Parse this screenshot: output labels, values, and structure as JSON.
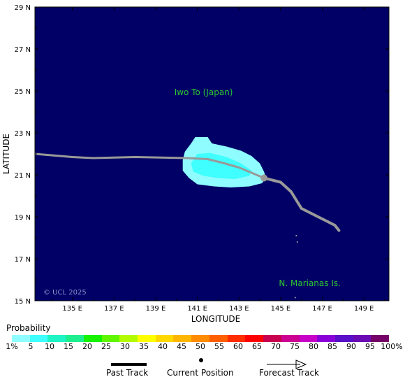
{
  "chart_data": {
    "type": "probability_map",
    "xlabel": "LONGITUDE",
    "ylabel": "LATITUDE",
    "xlim": [
      133.2,
      150.2
    ],
    "ylim": [
      15,
      29
    ],
    "x_ticks": [
      {
        "value": 135,
        "label": "135 E"
      },
      {
        "value": 137,
        "label": "137 E"
      },
      {
        "value": 139,
        "label": "139 E"
      },
      {
        "value": 141,
        "label": "141 E"
      },
      {
        "value": 143,
        "label": "143 E"
      },
      {
        "value": 145,
        "label": "145 E"
      },
      {
        "value": 147,
        "label": "147 E"
      },
      {
        "value": 149,
        "label": "149 E"
      }
    ],
    "y_ticks": [
      {
        "value": 15,
        "label": "15 N"
      },
      {
        "value": 17,
        "label": "17 N"
      },
      {
        "value": 19,
        "label": "19 N"
      },
      {
        "value": 21,
        "label": "21 N"
      },
      {
        "value": 23,
        "label": "23 N"
      },
      {
        "value": 25,
        "label": "25 N"
      },
      {
        "value": 27,
        "label": "27 N"
      },
      {
        "value": 29,
        "label": "29 N"
      }
    ],
    "place_labels": [
      {
        "text": "Iwo To (Japan)",
        "lon": 141.3,
        "lat": 24.8
      },
      {
        "text": "N. Marianas Is.",
        "lon": 146.4,
        "lat": 15.7
      }
    ],
    "copyright": "© UCL 2025",
    "past_track": [
      [
        133.2,
        22.0
      ],
      [
        135.0,
        21.85
      ],
      [
        136.0,
        21.8
      ],
      [
        138.0,
        21.85
      ],
      [
        140.5,
        21.8
      ],
      [
        141.5,
        21.75
      ],
      [
        142.3,
        21.55
      ],
      [
        143.0,
        21.35
      ],
      [
        143.6,
        21.1
      ],
      [
        144.2,
        20.85
      ]
    ],
    "forecast_track": [
      [
        144.2,
        20.85
      ],
      [
        145.0,
        20.65
      ],
      [
        145.5,
        20.2
      ],
      [
        146.0,
        19.4
      ],
      [
        146.8,
        19.0
      ],
      [
        147.6,
        18.6
      ],
      [
        147.8,
        18.35
      ]
    ],
    "current_position": [
      144.2,
      20.85
    ],
    "probability_regions": [
      {
        "threshold": "1%",
        "color": "#8ffdff",
        "polygon": [
          [
            140.9,
            22.8
          ],
          [
            141.5,
            22.8
          ],
          [
            141.7,
            22.5
          ],
          [
            142.4,
            22.35
          ],
          [
            143.1,
            22.15
          ],
          [
            143.6,
            21.9
          ],
          [
            144.0,
            21.55
          ],
          [
            144.2,
            21.15
          ],
          [
            144.3,
            20.85
          ],
          [
            144.1,
            20.6
          ],
          [
            143.5,
            20.45
          ],
          [
            142.6,
            20.4
          ],
          [
            141.8,
            20.45
          ],
          [
            141.0,
            20.55
          ],
          [
            140.6,
            20.85
          ],
          [
            140.3,
            21.2
          ],
          [
            140.3,
            21.7
          ],
          [
            140.4,
            22.1
          ],
          [
            140.7,
            22.5
          ]
        ]
      },
      {
        "threshold": "5%",
        "color": "#3fffff",
        "polygon": [
          [
            141.0,
            22.0
          ],
          [
            141.6,
            22.05
          ],
          [
            142.4,
            21.85
          ],
          [
            143.1,
            21.55
          ],
          [
            143.6,
            21.2
          ],
          [
            143.5,
            20.95
          ],
          [
            142.8,
            20.8
          ],
          [
            142.0,
            20.85
          ],
          [
            141.3,
            20.95
          ],
          [
            140.8,
            21.15
          ],
          [
            140.7,
            21.55
          ]
        ]
      }
    ],
    "colorbar": {
      "title": "Probability",
      "labels": [
        "1%",
        "5",
        "10",
        "15",
        "20",
        "25",
        "30",
        "35",
        "40",
        "45",
        "50",
        "55",
        "60",
        "65",
        "70",
        "75",
        "80",
        "85",
        "90",
        "95",
        "100%"
      ],
      "colors": [
        "#8ffdff",
        "#3fffff",
        "#1ff4c7",
        "#1fee8f",
        "#16f200",
        "#5ff600",
        "#b3fb00",
        "#ffff00",
        "#ffd800",
        "#ffb600",
        "#ff8c00",
        "#ff5f00",
        "#ff2d00",
        "#ff0000",
        "#c8004f",
        "#cc0091",
        "#c800c8",
        "#8a00d8",
        "#5a0fc8",
        "#6a0ab4",
        "#750068"
      ]
    },
    "key": {
      "past_track": "Past Track",
      "current_position": "Current Position",
      "forecast_track": "Forecast Track"
    },
    "colors": {
      "background": "#000066",
      "track": "#999999",
      "land": "#aaaaaa"
    }
  }
}
